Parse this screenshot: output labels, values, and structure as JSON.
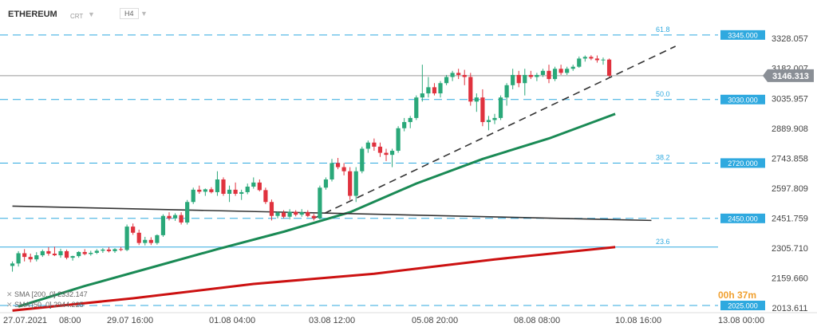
{
  "header": {
    "symbol": "ETHEREUM",
    "instrument_type": "CRT",
    "timeframe": "H4"
  },
  "legend": {
    "sma200": "SMA [200, 0] 2332.147",
    "sma50": "SMA [50, 0] 2944.225"
  },
  "timer": "00h 37m",
  "colors": {
    "up": "#2aa879",
    "down": "#e0323e",
    "level": "#2fa9df",
    "sma50": "#1a8a55",
    "sma200": "#cc1111",
    "trend": "#333333",
    "current": "#8a8f96"
  },
  "chart_data": {
    "type": "candlestick",
    "timeframe": "H4",
    "ylim": [
      1990,
      3360
    ],
    "y_ticks": [
      3328.057,
      3182.007,
      3035.957,
      2889.908,
      2743.858,
      2597.809,
      2451.759,
      2305.71,
      2159.66,
      2013.611
    ],
    "x_ticks": [
      "27.07.2021",
      "08:00",
      "29.07 16:00",
      "01.08 04:00",
      "03.08 12:00",
      "05.08 20:00",
      "08.08 08:00",
      "10.08 16:00",
      "13.08 00:00"
    ],
    "current_price": {
      "value": 3146.313,
      "label": "3146.313"
    },
    "fib_levels": [
      {
        "value": 3345.0,
        "ratio_label": "61.8",
        "price_label": "3345.000",
        "style": "dashed"
      },
      {
        "value": 3030.0,
        "ratio_label": "50.0",
        "price_label": "3030.000",
        "style": "dashed"
      },
      {
        "value": 2720.0,
        "ratio_label": "38.2",
        "price_label": "2720.000",
        "style": "dashed"
      },
      {
        "value": 2450.0,
        "ratio_label": "",
        "price_label": "2450.000",
        "style": "dashed"
      },
      {
        "value": 2310.0,
        "ratio_label": "23.6",
        "price_label": "",
        "style": "solid"
      },
      {
        "value": 2025.0,
        "ratio_label": "",
        "price_label": "2025.000",
        "style": "dashed"
      }
    ],
    "candles": [
      {
        "o": 2218,
        "h": 2240,
        "l": 2190,
        "c": 2230
      },
      {
        "o": 2230,
        "h": 2290,
        "l": 2215,
        "c": 2280
      },
      {
        "o": 2280,
        "h": 2300,
        "l": 2240,
        "c": 2262
      },
      {
        "o": 2262,
        "h": 2278,
        "l": 2236,
        "c": 2250
      },
      {
        "o": 2250,
        "h": 2285,
        "l": 2240,
        "c": 2270
      },
      {
        "o": 2270,
        "h": 2298,
        "l": 2262,
        "c": 2290
      },
      {
        "o": 2290,
        "h": 2310,
        "l": 2268,
        "c": 2278
      },
      {
        "o": 2278,
        "h": 2312,
        "l": 2266,
        "c": 2270
      },
      {
        "o": 2270,
        "h": 2302,
        "l": 2258,
        "c": 2290
      },
      {
        "o": 2290,
        "h": 2298,
        "l": 2250,
        "c": 2258
      },
      {
        "o": 2258,
        "h": 2268,
        "l": 2244,
        "c": 2266
      },
      {
        "o": 2266,
        "h": 2290,
        "l": 2258,
        "c": 2286
      },
      {
        "o": 2286,
        "h": 2300,
        "l": 2270,
        "c": 2276
      },
      {
        "o": 2276,
        "h": 2292,
        "l": 2268,
        "c": 2282
      },
      {
        "o": 2282,
        "h": 2300,
        "l": 2276,
        "c": 2292
      },
      {
        "o": 2292,
        "h": 2305,
        "l": 2282,
        "c": 2298
      },
      {
        "o": 2298,
        "h": 2310,
        "l": 2284,
        "c": 2290
      },
      {
        "o": 2290,
        "h": 2305,
        "l": 2282,
        "c": 2300
      },
      {
        "o": 2300,
        "h": 2310,
        "l": 2290,
        "c": 2296
      },
      {
        "o": 2296,
        "h": 2420,
        "l": 2290,
        "c": 2410
      },
      {
        "o": 2410,
        "h": 2425,
        "l": 2370,
        "c": 2380
      },
      {
        "o": 2380,
        "h": 2395,
        "l": 2320,
        "c": 2330
      },
      {
        "o": 2330,
        "h": 2360,
        "l": 2318,
        "c": 2345
      },
      {
        "o": 2345,
        "h": 2358,
        "l": 2320,
        "c": 2330
      },
      {
        "o": 2330,
        "h": 2372,
        "l": 2322,
        "c": 2368
      },
      {
        "o": 2368,
        "h": 2470,
        "l": 2360,
        "c": 2462
      },
      {
        "o": 2462,
        "h": 2480,
        "l": 2440,
        "c": 2450
      },
      {
        "o": 2450,
        "h": 2475,
        "l": 2438,
        "c": 2466
      },
      {
        "o": 2466,
        "h": 2480,
        "l": 2420,
        "c": 2430
      },
      {
        "o": 2430,
        "h": 2540,
        "l": 2420,
        "c": 2530
      },
      {
        "o": 2530,
        "h": 2600,
        "l": 2520,
        "c": 2590
      },
      {
        "o": 2590,
        "h": 2610,
        "l": 2570,
        "c": 2580
      },
      {
        "o": 2580,
        "h": 2596,
        "l": 2560,
        "c": 2592
      },
      {
        "o": 2592,
        "h": 2602,
        "l": 2572,
        "c": 2578
      },
      {
        "o": 2578,
        "h": 2680,
        "l": 2560,
        "c": 2640
      },
      {
        "o": 2640,
        "h": 2650,
        "l": 2560,
        "c": 2570
      },
      {
        "o": 2570,
        "h": 2610,
        "l": 2530,
        "c": 2590
      },
      {
        "o": 2590,
        "h": 2625,
        "l": 2560,
        "c": 2570
      },
      {
        "o": 2570,
        "h": 2590,
        "l": 2540,
        "c": 2578
      },
      {
        "o": 2578,
        "h": 2620,
        "l": 2568,
        "c": 2605
      },
      {
        "o": 2605,
        "h": 2650,
        "l": 2595,
        "c": 2625
      },
      {
        "o": 2625,
        "h": 2640,
        "l": 2582,
        "c": 2588
      },
      {
        "o": 2588,
        "h": 2600,
        "l": 2520,
        "c": 2530
      },
      {
        "o": 2530,
        "h": 2542,
        "l": 2440,
        "c": 2462
      },
      {
        "o": 2462,
        "h": 2485,
        "l": 2450,
        "c": 2478
      },
      {
        "o": 2478,
        "h": 2490,
        "l": 2450,
        "c": 2458
      },
      {
        "o": 2458,
        "h": 2495,
        "l": 2445,
        "c": 2482
      },
      {
        "o": 2482,
        "h": 2490,
        "l": 2460,
        "c": 2468
      },
      {
        "o": 2468,
        "h": 2495,
        "l": 2458,
        "c": 2480
      },
      {
        "o": 2480,
        "h": 2490,
        "l": 2456,
        "c": 2462
      },
      {
        "o": 2462,
        "h": 2472,
        "l": 2440,
        "c": 2450
      },
      {
        "o": 2450,
        "h": 2610,
        "l": 2445,
        "c": 2600
      },
      {
        "o": 2600,
        "h": 2650,
        "l": 2590,
        "c": 2640
      },
      {
        "o": 2640,
        "h": 2740,
        "l": 2630,
        "c": 2720
      },
      {
        "o": 2720,
        "h": 2745,
        "l": 2690,
        "c": 2700
      },
      {
        "o": 2700,
        "h": 2720,
        "l": 2660,
        "c": 2680
      },
      {
        "o": 2680,
        "h": 2700,
        "l": 2540,
        "c": 2560
      },
      {
        "o": 2560,
        "h": 2700,
        "l": 2530,
        "c": 2680
      },
      {
        "o": 2680,
        "h": 2800,
        "l": 2670,
        "c": 2790
      },
      {
        "o": 2790,
        "h": 2830,
        "l": 2770,
        "c": 2820
      },
      {
        "o": 2820,
        "h": 2840,
        "l": 2780,
        "c": 2800
      },
      {
        "o": 2800,
        "h": 2820,
        "l": 2750,
        "c": 2770
      },
      {
        "o": 2770,
        "h": 2790,
        "l": 2730,
        "c": 2760
      },
      {
        "o": 2760,
        "h": 2790,
        "l": 2700,
        "c": 2780
      },
      {
        "o": 2780,
        "h": 2900,
        "l": 2770,
        "c": 2890
      },
      {
        "o": 2890,
        "h": 2940,
        "l": 2875,
        "c": 2920
      },
      {
        "o": 2920,
        "h": 2950,
        "l": 2890,
        "c": 2940
      },
      {
        "o": 2940,
        "h": 3050,
        "l": 2930,
        "c": 3040
      },
      {
        "o": 3040,
        "h": 3200,
        "l": 3020,
        "c": 3060
      },
      {
        "o": 3060,
        "h": 3140,
        "l": 3040,
        "c": 3090
      },
      {
        "o": 3090,
        "h": 3110,
        "l": 3050,
        "c": 3060
      },
      {
        "o": 3060,
        "h": 3120,
        "l": 3040,
        "c": 3110
      },
      {
        "o": 3110,
        "h": 3150,
        "l": 3100,
        "c": 3140
      },
      {
        "o": 3140,
        "h": 3170,
        "l": 3120,
        "c": 3160
      },
      {
        "o": 3160,
        "h": 3180,
        "l": 3130,
        "c": 3150
      },
      {
        "o": 3150,
        "h": 3175,
        "l": 3100,
        "c": 3140
      },
      {
        "o": 3140,
        "h": 3160,
        "l": 3000,
        "c": 3020
      },
      {
        "o": 3020,
        "h": 3060,
        "l": 2970,
        "c": 3040
      },
      {
        "o": 3040,
        "h": 3080,
        "l": 2900,
        "c": 2920
      },
      {
        "o": 2920,
        "h": 2950,
        "l": 2880,
        "c": 2930
      },
      {
        "o": 2930,
        "h": 2960,
        "l": 2910,
        "c": 2940
      },
      {
        "o": 2940,
        "h": 3050,
        "l": 2930,
        "c": 3040
      },
      {
        "o": 3040,
        "h": 3110,
        "l": 3000,
        "c": 3100
      },
      {
        "o": 3100,
        "h": 3180,
        "l": 3080,
        "c": 3150
      },
      {
        "o": 3150,
        "h": 3170,
        "l": 3090,
        "c": 3110
      },
      {
        "o": 3110,
        "h": 3180,
        "l": 3050,
        "c": 3150
      },
      {
        "o": 3150,
        "h": 3170,
        "l": 3130,
        "c": 3140
      },
      {
        "o": 3140,
        "h": 3160,
        "l": 3120,
        "c": 3150
      },
      {
        "o": 3150,
        "h": 3180,
        "l": 3140,
        "c": 3170
      },
      {
        "o": 3170,
        "h": 3200,
        "l": 3110,
        "c": 3130
      },
      {
        "o": 3130,
        "h": 3190,
        "l": 3120,
        "c": 3180
      },
      {
        "o": 3180,
        "h": 3200,
        "l": 3150,
        "c": 3160
      },
      {
        "o": 3160,
        "h": 3190,
        "l": 3150,
        "c": 3180
      },
      {
        "o": 3180,
        "h": 3200,
        "l": 3170,
        "c": 3190
      },
      {
        "o": 3190,
        "h": 3240,
        "l": 3185,
        "c": 3230
      },
      {
        "o": 3230,
        "h": 3245,
        "l": 3215,
        "c": 3238
      },
      {
        "o": 3238,
        "h": 3246,
        "l": 3222,
        "c": 3230
      },
      {
        "o": 3230,
        "h": 3245,
        "l": 3210,
        "c": 3222
      },
      {
        "o": 3222,
        "h": 3235,
        "l": 3200,
        "c": 3225
      },
      {
        "o": 3225,
        "h": 3230,
        "l": 3140,
        "c": 3146
      }
    ],
    "sma50": [
      [
        1,
        2020
      ],
      [
        12,
        2120
      ],
      [
        23,
        2210
      ],
      [
        34,
        2300
      ],
      [
        45,
        2385
      ],
      [
        56,
        2480
      ],
      [
        67,
        2620
      ],
      [
        78,
        2740
      ],
      [
        89,
        2840
      ],
      [
        100,
        2960
      ]
    ],
    "sma200": [
      [
        0,
        2000
      ],
      [
        20,
        2060
      ],
      [
        40,
        2130
      ],
      [
        60,
        2180
      ],
      [
        80,
        2250
      ],
      [
        100,
        2310
      ]
    ],
    "trend_lines": [
      {
        "x1": 0,
        "y1": 2510,
        "x2": 106,
        "y2": 2440,
        "style": "solid"
      },
      {
        "x1": 50,
        "y1": 2450,
        "x2": 110,
        "y2": 3290,
        "style": "dashed"
      }
    ],
    "x_range": [
      -1,
      116
    ]
  }
}
